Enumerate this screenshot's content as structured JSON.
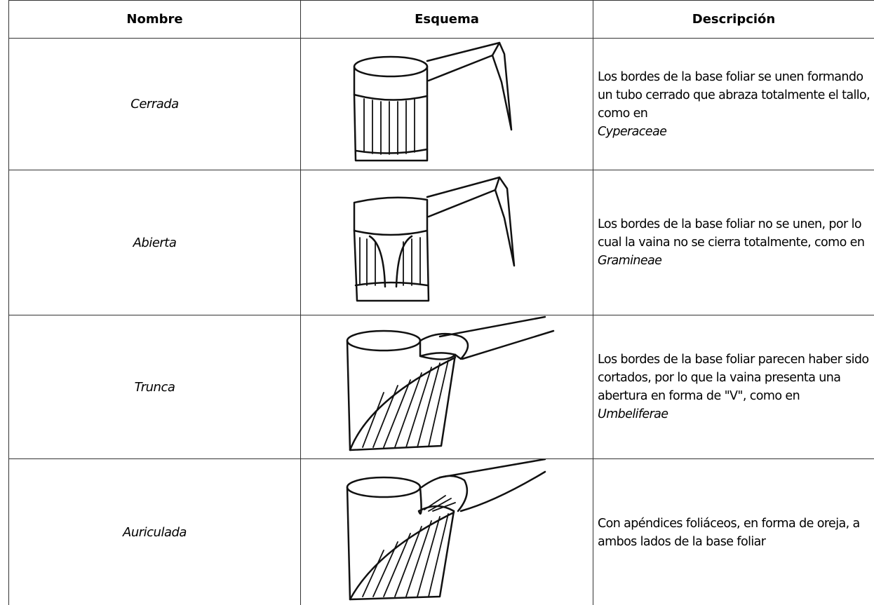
{
  "header": {
    "columns": [
      "Nombre",
      "Esquema",
      "Descripción"
    ]
  },
  "table": {
    "rows": [
      {
        "name": "Cerrada",
        "description": "Los bordes de la base foliar se unen formando un tubo cerrado que abraza totalmente el tallo, como en",
        "taxon": "Cyperaceae"
      },
      {
        "name": "Abierta",
        "description": "Los bordes de la base foliar no se unen, por lo cual la vaina no se cierra totalmente, como en",
        "taxon": "Gramineae"
      },
      {
        "name": "Trunca",
        "description": "Los bordes de la base foliar parecen haber sido cortados, por lo que la vaina presenta una abertura en forma de \"V\", como en",
        "taxon": "Umbeliferae"
      },
      {
        "name": "Auriculada",
        "description": "Con apéndices foliáceos, en forma de oreja, a ambos lados de la base foliar"
      }
    ]
  }
}
